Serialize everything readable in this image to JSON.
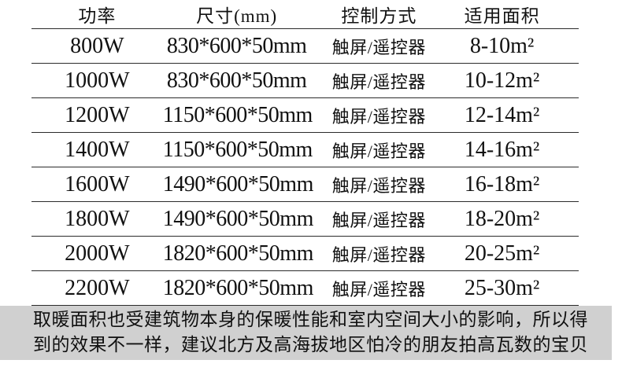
{
  "table": {
    "headers": [
      "功率",
      "尺寸(mm)",
      "控制方式",
      "适用面积"
    ],
    "rows": [
      {
        "power": "800W",
        "size": "830*600*50mm",
        "control": "触屏/遥控器",
        "area": "8-10m²"
      },
      {
        "power": "1000W",
        "size": "830*600*50mm",
        "control": "触屏/遥控器",
        "area": "10-12m²"
      },
      {
        "power": "1200W",
        "size": "1150*600*50mm",
        "control": "触屏/遥控器",
        "area": "12-14m²"
      },
      {
        "power": "1400W",
        "size": "1150*600*50mm",
        "control": "触屏/遥控器",
        "area": "14-16m²"
      },
      {
        "power": "1600W",
        "size": "1490*600*50mm",
        "control": "触屏/遥控器",
        "area": "16-18m²"
      },
      {
        "power": "1800W",
        "size": "1490*600*50mm",
        "control": "触屏/遥控器",
        "area": "18-20m²"
      },
      {
        "power": "2000W",
        "size": "1820*600*50mm",
        "control": "触屏/遥控器",
        "area": "20-25m²"
      },
      {
        "power": "2200W",
        "size": "1820*600*50mm",
        "control": "触屏/遥控器",
        "area": "25-30m²"
      }
    ]
  },
  "note": {
    "text": "取暖面积也受建筑物本身的保暖性能和室内空间大小的影响，所以得到的效果不一样，建议北方及高海拔地区怕冷的朋友拍高瓦数的宝贝"
  },
  "colors": {
    "background": "#ffffff",
    "note_background": "#d0d0d0",
    "rule_line": "#2b2b2b",
    "text": "#111111"
  }
}
